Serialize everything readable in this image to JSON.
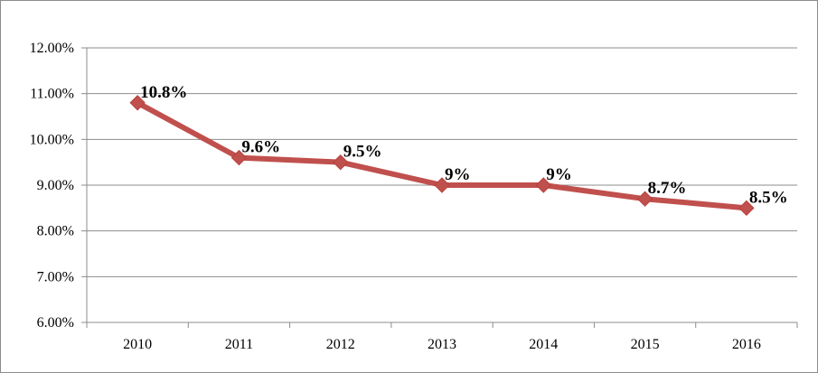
{
  "chart_data": {
    "type": "line",
    "categories": [
      "2010",
      "2011",
      "2012",
      "2013",
      "2014",
      "2015",
      "2016"
    ],
    "series": [
      {
        "values": [
          10.8,
          9.6,
          9.5,
          9.0,
          9.0,
          8.7,
          8.5
        ],
        "data_labels": [
          "10.8%",
          "9.6%",
          "9.5%",
          "9%",
          "9%",
          "8.7%",
          "8.5%"
        ],
        "color": "#c0504d",
        "marker": "diamond"
      }
    ],
    "ylim": [
      6,
      12
    ],
    "y_ticks": [
      6,
      7,
      8,
      9,
      10,
      11,
      12
    ],
    "y_tick_labels": [
      "6.00%",
      "7.00%",
      "8.00%",
      "9.00%",
      "10.00%",
      "11.00%",
      "12.00%"
    ],
    "grid": true,
    "legend": "none",
    "gridline_color": "#8c8c8c"
  }
}
